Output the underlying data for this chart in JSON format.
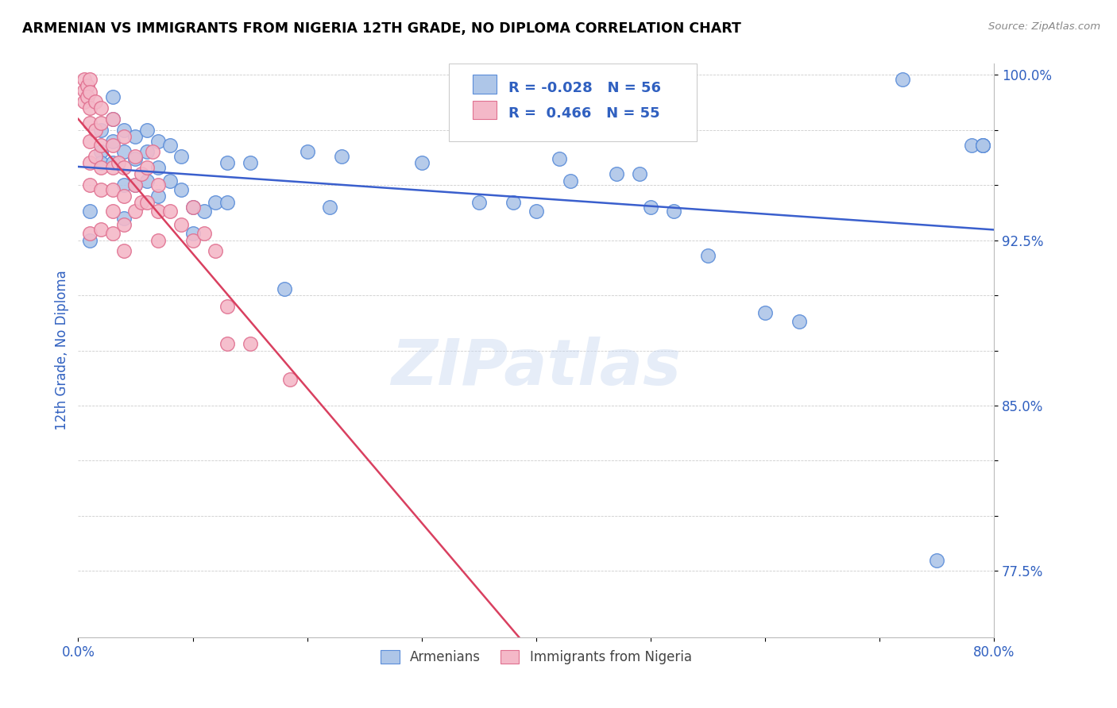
{
  "title": "ARMENIAN VS IMMIGRANTS FROM NIGERIA 12TH GRADE, NO DIPLOMA CORRELATION CHART",
  "source": "Source: ZipAtlas.com",
  "ylabel": "12th Grade, No Diploma",
  "legend_armenians": "Armenians",
  "legend_nigeria": "Immigrants from Nigeria",
  "r_armenian": -0.028,
  "n_armenian": 56,
  "r_nigeria": 0.466,
  "n_nigeria": 55,
  "xlim": [
    0.0,
    0.8
  ],
  "ylim": [
    0.745,
    1.005
  ],
  "color_armenian_fill": "#aec6e8",
  "color_armenian_edge": "#5b8dd9",
  "color_nigeria_fill": "#f4b8c8",
  "color_nigeria_edge": "#e07090",
  "color_line_armenian": "#3a5fcd",
  "color_line_nigeria": "#d94060",
  "watermark": "ZIPatlas",
  "blue_points_x": [
    0.01,
    0.01,
    0.02,
    0.02,
    0.02,
    0.03,
    0.03,
    0.03,
    0.03,
    0.04,
    0.04,
    0.04,
    0.04,
    0.05,
    0.05,
    0.05,
    0.06,
    0.06,
    0.06,
    0.07,
    0.07,
    0.07,
    0.08,
    0.08,
    0.09,
    0.09,
    0.1,
    0.1,
    0.11,
    0.12,
    0.13,
    0.13,
    0.15,
    0.18,
    0.2,
    0.22,
    0.23,
    0.3,
    0.35,
    0.38,
    0.4,
    0.42,
    0.43,
    0.47,
    0.49,
    0.5,
    0.52,
    0.55,
    0.6,
    0.63,
    0.72,
    0.75,
    0.78,
    0.79,
    0.79,
    0.79
  ],
  "blue_points_y": [
    0.938,
    0.925,
    0.965,
    0.975,
    0.96,
    0.97,
    0.96,
    0.98,
    0.99,
    0.975,
    0.965,
    0.95,
    0.935,
    0.972,
    0.962,
    0.95,
    0.975,
    0.965,
    0.952,
    0.97,
    0.958,
    0.945,
    0.968,
    0.952,
    0.963,
    0.948,
    0.94,
    0.928,
    0.938,
    0.942,
    0.96,
    0.942,
    0.96,
    0.903,
    0.965,
    0.94,
    0.963,
    0.96,
    0.942,
    0.942,
    0.938,
    0.962,
    0.952,
    0.955,
    0.955,
    0.94,
    0.938,
    0.918,
    0.892,
    0.888,
    0.998,
    0.78,
    0.968,
    0.968,
    0.968,
    0.968
  ],
  "pink_points_x": [
    0.005,
    0.005,
    0.005,
    0.008,
    0.008,
    0.01,
    0.01,
    0.01,
    0.01,
    0.01,
    0.01,
    0.01,
    0.01,
    0.015,
    0.015,
    0.015,
    0.02,
    0.02,
    0.02,
    0.02,
    0.02,
    0.02,
    0.03,
    0.03,
    0.03,
    0.03,
    0.03,
    0.03,
    0.035,
    0.04,
    0.04,
    0.04,
    0.04,
    0.04,
    0.05,
    0.05,
    0.05,
    0.055,
    0.055,
    0.06,
    0.06,
    0.065,
    0.07,
    0.07,
    0.07,
    0.08,
    0.09,
    0.1,
    0.1,
    0.11,
    0.12,
    0.13,
    0.13,
    0.15,
    0.185
  ],
  "pink_points_y": [
    0.998,
    0.993,
    0.988,
    0.995,
    0.99,
    0.998,
    0.992,
    0.985,
    0.978,
    0.97,
    0.96,
    0.95,
    0.928,
    0.988,
    0.975,
    0.963,
    0.985,
    0.978,
    0.968,
    0.958,
    0.948,
    0.93,
    0.98,
    0.968,
    0.958,
    0.948,
    0.938,
    0.928,
    0.96,
    0.972,
    0.958,
    0.945,
    0.932,
    0.92,
    0.963,
    0.95,
    0.938,
    0.955,
    0.942,
    0.958,
    0.942,
    0.965,
    0.95,
    0.938,
    0.925,
    0.938,
    0.932,
    0.94,
    0.925,
    0.928,
    0.92,
    0.895,
    0.878,
    0.878,
    0.862
  ]
}
